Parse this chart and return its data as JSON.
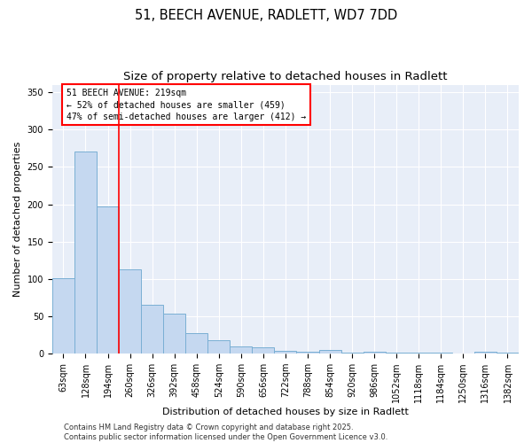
{
  "title_line1": "51, BEECH AVENUE, RADLETT, WD7 7DD",
  "title_line2": "Size of property relative to detached houses in Radlett",
  "xlabel": "Distribution of detached houses by size in Radlett",
  "ylabel": "Number of detached properties",
  "bar_labels": [
    "63sqm",
    "128sqm",
    "194sqm",
    "260sqm",
    "326sqm",
    "392sqm",
    "458sqm",
    "524sqm",
    "590sqm",
    "656sqm",
    "722sqm",
    "788sqm",
    "854sqm",
    "920sqm",
    "986sqm",
    "1052sqm",
    "1118sqm",
    "1184sqm",
    "1250sqm",
    "1316sqm",
    "1382sqm"
  ],
  "bar_values": [
    101,
    270,
    197,
    113,
    66,
    54,
    27,
    18,
    10,
    9,
    4,
    3,
    5,
    1,
    3,
    1,
    2,
    1,
    0,
    3,
    1
  ],
  "bar_color": "#c5d8f0",
  "bar_edge_color": "#7aafd4",
  "vline_x": 2.5,
  "vline_color": "red",
  "annotation_text": "51 BEECH AVENUE: 219sqm\n← 52% of detached houses are smaller (459)\n47% of semi-detached houses are larger (412) →",
  "annotation_box_color": "white",
  "annotation_box_edge_color": "red",
  "ylim": [
    0,
    360
  ],
  "yticks": [
    0,
    50,
    100,
    150,
    200,
    250,
    300,
    350
  ],
  "footer_text": "Contains HM Land Registry data © Crown copyright and database right 2025.\nContains public sector information licensed under the Open Government Licence v3.0.",
  "bg_color": "#e8eef8",
  "title_fontsize": 10.5,
  "subtitle_fontsize": 9.5,
  "tick_fontsize": 7,
  "label_fontsize": 8,
  "annot_fontsize": 7,
  "footer_fontsize": 6
}
